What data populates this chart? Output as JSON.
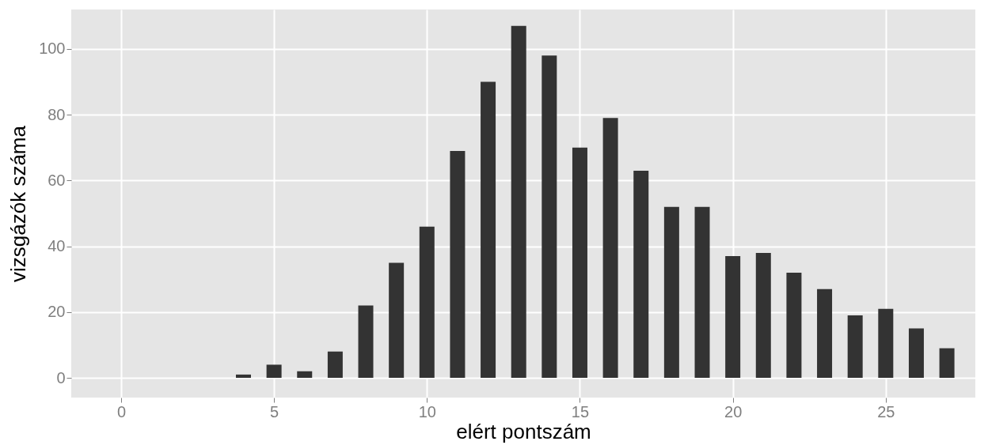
{
  "chart_data": {
    "type": "bar",
    "xlabel": "elért pontszám",
    "ylabel": "vizsgázók száma",
    "x": [
      0,
      1,
      2,
      3,
      4,
      5,
      6,
      7,
      8,
      9,
      10,
      11,
      12,
      13,
      14,
      15,
      16,
      17,
      18,
      19,
      20,
      21,
      22,
      23,
      24,
      25,
      26,
      27
    ],
    "values": [
      0,
      0,
      0,
      0,
      1,
      4,
      2,
      8,
      22,
      35,
      46,
      69,
      90,
      107,
      98,
      70,
      79,
      63,
      52,
      52,
      37,
      38,
      32,
      27,
      19,
      21,
      15,
      9
    ],
    "color": "#333333",
    "xlim": [
      -1.5,
      27.8
    ],
    "xticks": [
      0,
      5,
      10,
      15,
      20,
      25
    ],
    "ylim": [
      -6,
      112
    ],
    "yticks": [
      0,
      20,
      40,
      60,
      80,
      100
    ],
    "grid": true
  }
}
